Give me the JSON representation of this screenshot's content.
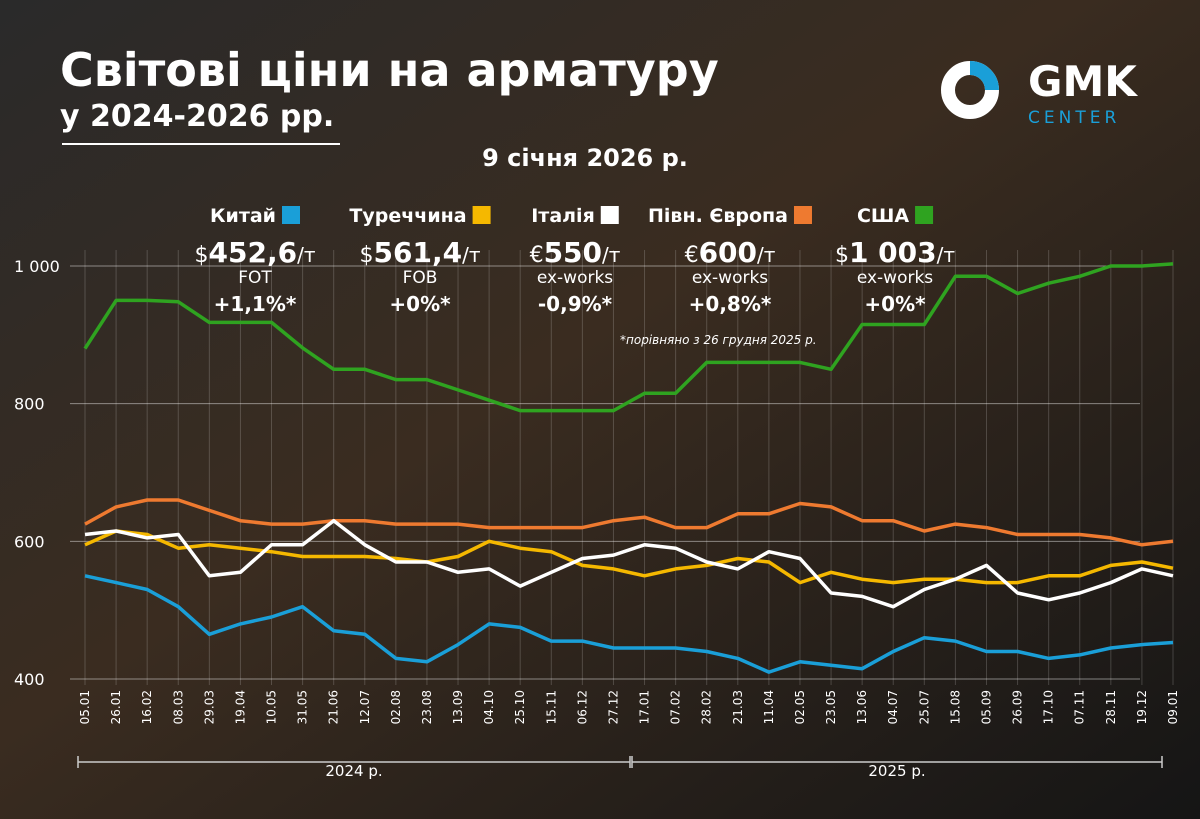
{
  "chart_data": {
    "type": "line",
    "title": "Світові ціни на арматуру",
    "subtitle": "у 2024-2026 рр.",
    "date": "9 січня 2026 р.",
    "footnote": "*порівняно з 26 грудня 2025 р.",
    "logo": {
      "name": "GMK",
      "sub": "CENTER"
    },
    "year_labels": [
      "2024 р.",
      "2025 р."
    ],
    "categories": [
      "05.01",
      "26.01",
      "16.02",
      "08.03",
      "29.03",
      "19.04",
      "10.05",
      "31.05",
      "21.06",
      "12.07",
      "02.08",
      "23.08",
      "13.09",
      "04.10",
      "25.10",
      "15.11",
      "06.12",
      "27.12",
      "17.01",
      "07.02",
      "28.02",
      "21.03",
      "11.04",
      "02.05",
      "23.05",
      "13.06",
      "04.07",
      "25.07",
      "15.08",
      "05.09",
      "26.09",
      "17.10",
      "07.11",
      "28.11",
      "19.12",
      "09.01"
    ],
    "ylim": [
      400,
      1000
    ],
    "yticks": [
      400,
      600,
      800,
      {
        "value": 1000,
        "label": "1 000"
      }
    ],
    "grid": true,
    "series": [
      {
        "name": "Китай",
        "color": "#1a9fd8",
        "currency": "$",
        "price": "452,6",
        "unit": "/т",
        "basis": "FOT",
        "change": "+1,1%*",
        "values": [
          550,
          540,
          530,
          505,
          465,
          480,
          490,
          505,
          470,
          465,
          430,
          425,
          450,
          480,
          475,
          455,
          455,
          445,
          445,
          445,
          440,
          430,
          410,
          425,
          420,
          415,
          440,
          460,
          455,
          440,
          440,
          430,
          435,
          445,
          450,
          453
        ]
      },
      {
        "name": "Туреччина",
        "color": "#f5b800",
        "currency": "$",
        "price": "561,4",
        "unit": "/т",
        "basis": "FOB",
        "change": "+0%*",
        "values": [
          595,
          615,
          610,
          590,
          595,
          590,
          585,
          578,
          578,
          578,
          575,
          570,
          578,
          600,
          590,
          585,
          565,
          560,
          550,
          560,
          565,
          575,
          570,
          540,
          555,
          545,
          540,
          545,
          545,
          540,
          540,
          550,
          550,
          565,
          570,
          561
        ]
      },
      {
        "name": "Італія",
        "color": "#ffffff",
        "currency": "€",
        "price": "550",
        "unit": "/т",
        "basis": "ex-works",
        "change": "-0,9%*",
        "values": [
          610,
          615,
          605,
          610,
          550,
          555,
          595,
          595,
          630,
          595,
          570,
          570,
          555,
          560,
          535,
          555,
          575,
          580,
          595,
          590,
          570,
          560,
          585,
          575,
          525,
          520,
          505,
          530,
          545,
          565,
          525,
          515,
          525,
          540,
          560,
          550
        ]
      },
      {
        "name": "Півн. Європа",
        "color": "#ee7a30",
        "currency": "€",
        "price": "600",
        "unit": "/т",
        "basis": "ex-works",
        "change": "+0,8%*",
        "values": [
          625,
          650,
          660,
          660,
          645,
          630,
          625,
          625,
          630,
          630,
          625,
          625,
          625,
          620,
          620,
          620,
          620,
          630,
          635,
          620,
          620,
          640,
          640,
          655,
          650,
          630,
          630,
          615,
          625,
          620,
          610,
          610,
          610,
          605,
          595,
          600
        ]
      },
      {
        "name": "США",
        "color": "#2fa320",
        "currency": "$",
        "price": "1 003",
        "unit": "/т",
        "basis": "ex-works",
        "change": "+0%*",
        "values": [
          880,
          950,
          950,
          948,
          918,
          918,
          918,
          881,
          850,
          850,
          835,
          835,
          820,
          805,
          790,
          790,
          790,
          790,
          815,
          815,
          860,
          860,
          860,
          860,
          850,
          915,
          915,
          915,
          985,
          985,
          960,
          975,
          985,
          1000,
          1000,
          1003
        ]
      }
    ]
  }
}
